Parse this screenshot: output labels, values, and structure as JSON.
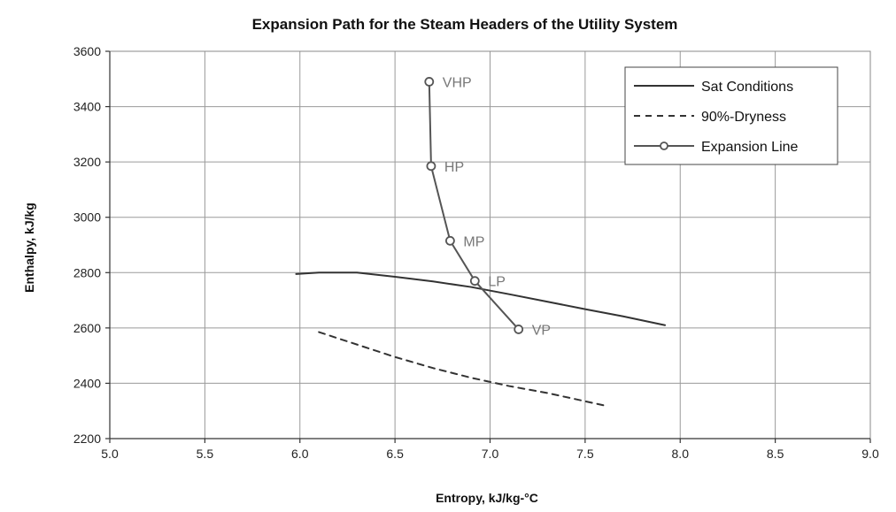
{
  "chart_data": {
    "type": "line",
    "title": "Expansion Path for the Steam Headers of the Utility System",
    "xlabel": "Entropy, kJ/kg-°C",
    "ylabel": "Enthalpy, kJ/kg",
    "xlim": [
      5.0,
      9.0
    ],
    "ylim": [
      2200,
      3600
    ],
    "x_ticks": [
      "5.0",
      "5.5",
      "6.0",
      "6.5",
      "7.0",
      "7.5",
      "8.0",
      "8.5",
      "9.0"
    ],
    "y_ticks": [
      "2200",
      "2400",
      "2600",
      "2800",
      "3000",
      "3200",
      "3400",
      "3600"
    ],
    "grid": true,
    "legend_position": "top-right",
    "series": [
      {
        "name": "Sat Conditions",
        "style": "solid",
        "color": "#333333",
        "points": [
          [
            5.98,
            2795
          ],
          [
            6.1,
            2800
          ],
          [
            6.3,
            2800
          ],
          [
            6.5,
            2785
          ],
          [
            6.7,
            2768
          ],
          [
            6.9,
            2748
          ],
          [
            7.1,
            2722
          ],
          [
            7.3,
            2695
          ],
          [
            7.5,
            2668
          ],
          [
            7.7,
            2642
          ],
          [
            7.92,
            2610
          ]
        ]
      },
      {
        "name": "90%-Dryness",
        "style": "dashed",
        "color": "#333333",
        "points": [
          [
            6.1,
            2585
          ],
          [
            6.3,
            2540
          ],
          [
            6.5,
            2495
          ],
          [
            6.7,
            2455
          ],
          [
            6.9,
            2420
          ],
          [
            7.1,
            2390
          ],
          [
            7.3,
            2365
          ],
          [
            7.5,
            2335
          ],
          [
            7.6,
            2320
          ]
        ]
      },
      {
        "name": "Expansion Line",
        "style": "solid-marker",
        "color": "#555555",
        "points": [
          [
            6.68,
            3490
          ],
          [
            6.69,
            3185
          ],
          [
            6.79,
            2915
          ],
          [
            6.92,
            2770
          ],
          [
            7.15,
            2595
          ]
        ],
        "point_labels": [
          "VHP",
          "HP",
          "MP",
          "LP",
          "VP"
        ]
      }
    ]
  }
}
